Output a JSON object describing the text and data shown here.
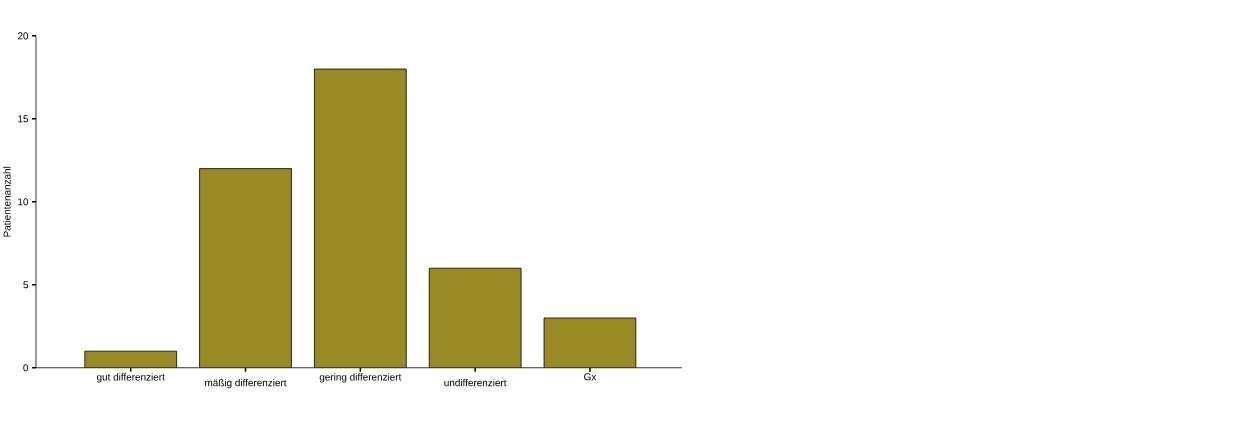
{
  "chart_data": {
    "type": "bar",
    "ylabel": "Patientenanzahl",
    "categories": [
      "gut differenziert",
      "mäßig differenziert",
      "gering differenziert",
      "undifferenziert",
      "Gx"
    ],
    "values": [
      1,
      12,
      18,
      6,
      3
    ],
    "color": "#9a8a26",
    "ylim": [
      0,
      20
    ],
    "yticks": [
      0,
      5,
      10,
      15,
      20
    ],
    "grid": false
  }
}
